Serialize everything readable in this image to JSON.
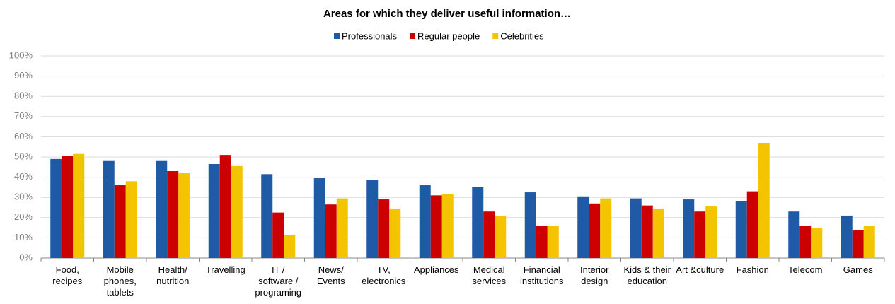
{
  "chart_data": {
    "type": "bar",
    "title": "Areas for which they deliver useful information…",
    "categories": [
      "Food,\nrecipes",
      "Mobile\nphones,\ntablets",
      "Health/\nnutrition",
      "Travelling",
      "IT /\nsoftware /\nprograming",
      "News/\nEvents",
      "TV,\nelectronics",
      "Appliances",
      "Medical\nservices",
      "Financial\ninstitutions",
      "Interior\ndesign",
      "Kids & their\neducation",
      "Art &culture",
      "Fashion",
      "Telecom",
      "Games"
    ],
    "series": [
      {
        "name": "Professionals",
        "color": "#1f5aa6",
        "values": [
          49,
          48,
          48,
          46.5,
          41.5,
          39.5,
          38.5,
          36,
          35,
          32.5,
          30.5,
          29.5,
          29,
          28,
          23,
          21
        ]
      },
      {
        "name": "Regular people",
        "color": "#cc0000",
        "values": [
          50.5,
          36,
          43,
          51,
          22.5,
          26.5,
          29,
          31,
          23,
          16,
          27,
          26,
          23,
          33,
          16,
          14
        ]
      },
      {
        "name": "Celebrities",
        "color": "#f5c400",
        "values": [
          51.5,
          38,
          42,
          45.5,
          11.5,
          29.5,
          24.5,
          31.5,
          21,
          16,
          29.5,
          24.5,
          25.5,
          57,
          15,
          16
        ]
      }
    ],
    "ylim": [
      0,
      100
    ],
    "yticks": [
      {
        "value": 0,
        "label": "0%"
      },
      {
        "value": 10,
        "label": "10%"
      },
      {
        "value": 20,
        "label": "20%"
      },
      {
        "value": 30,
        "label": "30%"
      },
      {
        "value": 40,
        "label": "40%"
      },
      {
        "value": 50,
        "label": "50%"
      },
      {
        "value": 60,
        "label": "60%"
      },
      {
        "value": 70,
        "label": "70%"
      },
      {
        "value": 80,
        "label": "80%"
      },
      {
        "value": 90,
        "label": "90%"
      },
      {
        "value": 100,
        "label": "100%"
      }
    ],
    "grid": true,
    "legend": "top"
  }
}
